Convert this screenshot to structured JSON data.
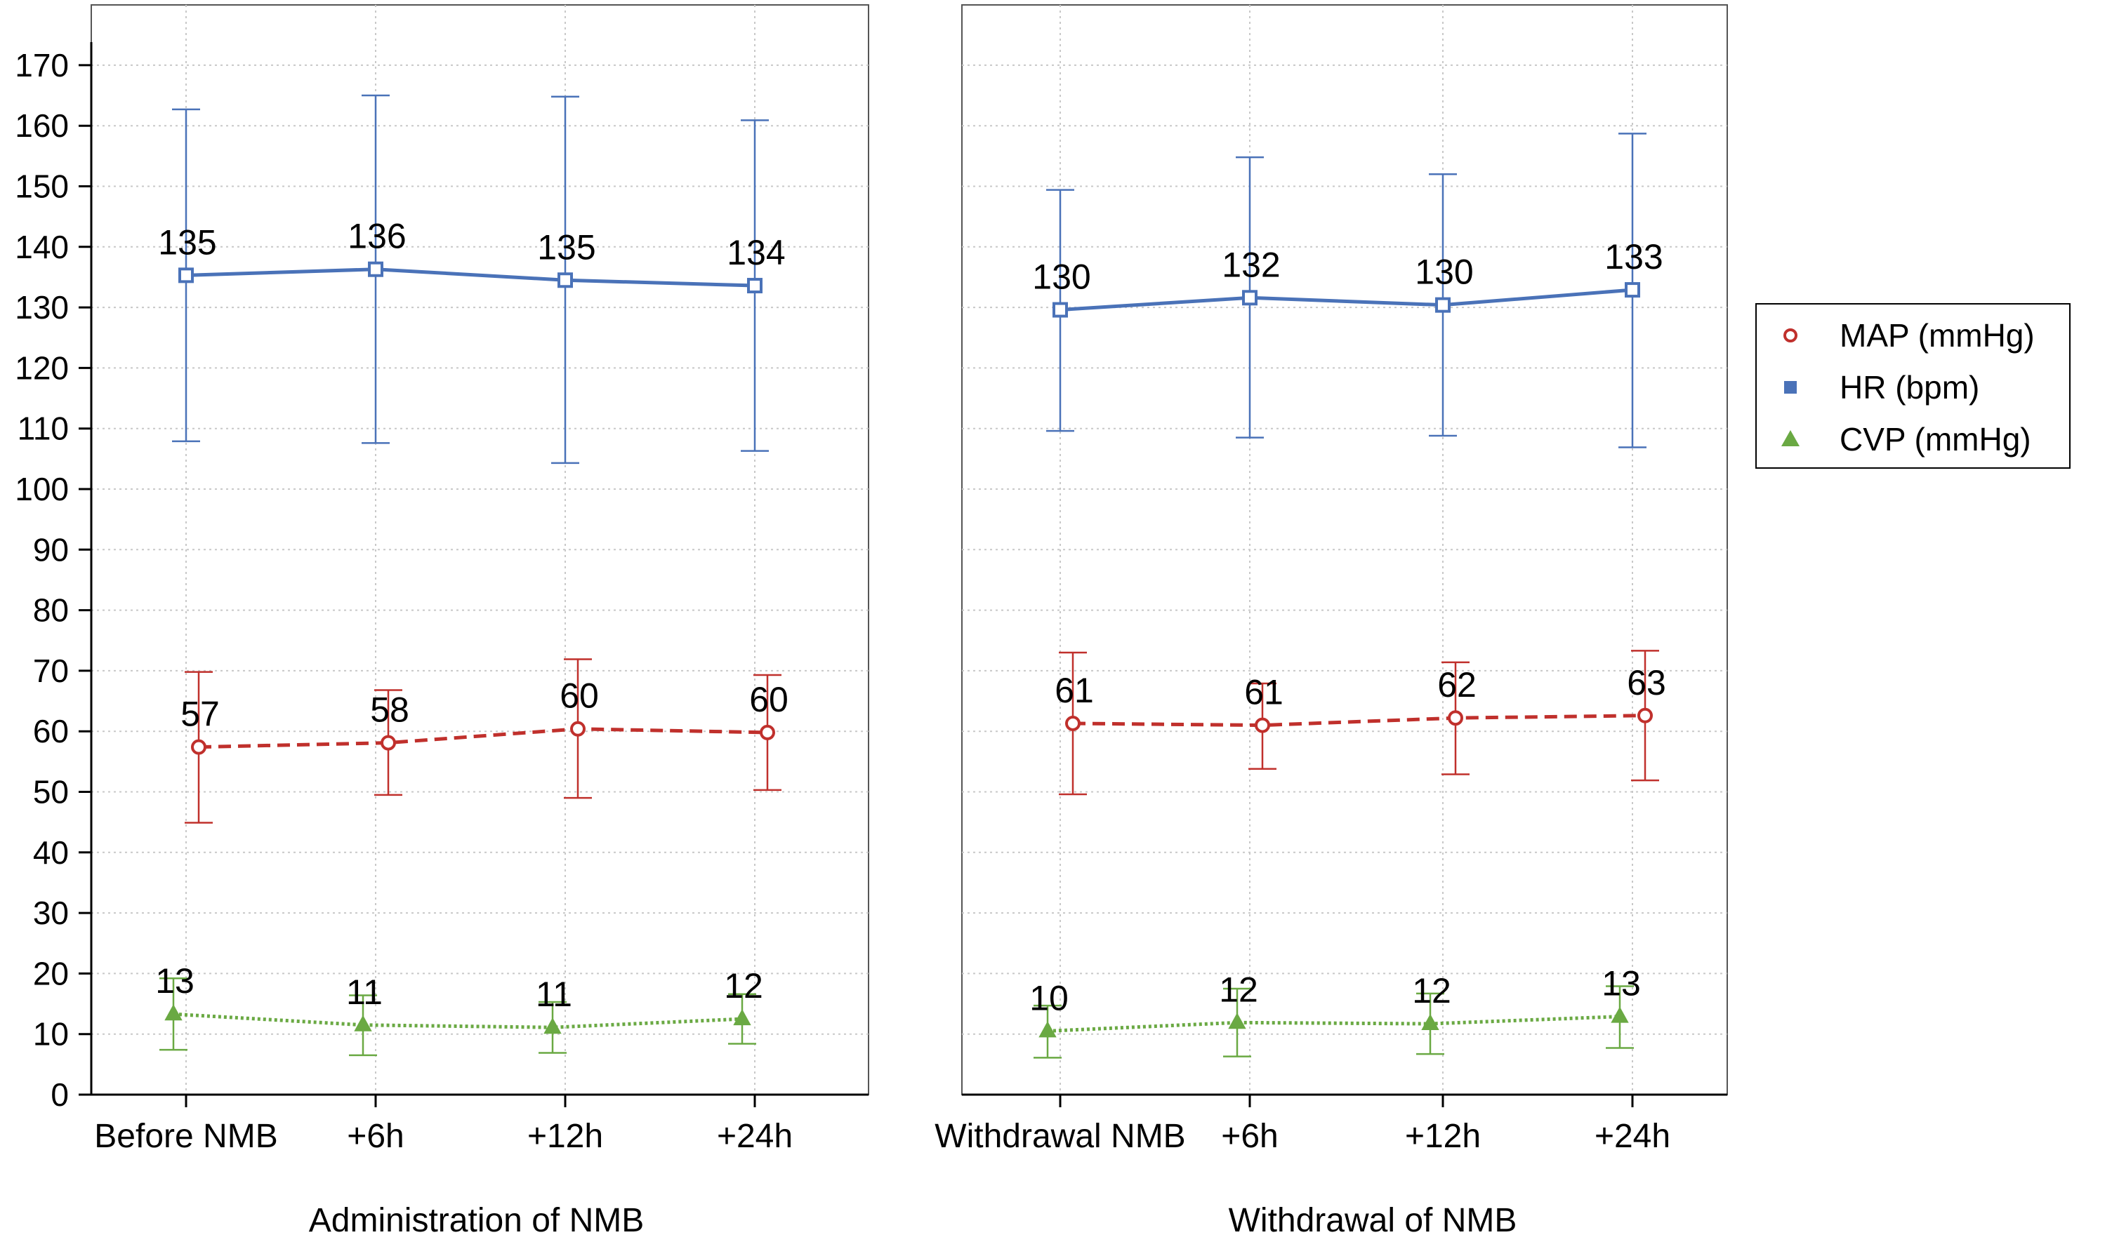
{
  "chart_data": {
    "type": "line",
    "y_ticks": [
      0,
      10,
      20,
      30,
      40,
      50,
      60,
      70,
      80,
      90,
      100,
      110,
      120,
      130,
      140,
      150,
      160,
      170
    ],
    "ylim": [
      0,
      178
    ],
    "grid": true,
    "legend_placement": "right",
    "panels": [
      {
        "xlabel": "Administration of NMB",
        "categories": [
          "Before NMB",
          "+6h",
          "+12h",
          "+24h"
        ]
      },
      {
        "xlabel": "Withdrawal of NMB",
        "categories": [
          "Withdrawal NMB",
          "+6h",
          "+12h",
          "+24h"
        ]
      }
    ],
    "series": [
      {
        "name": "MAP (mmHg)",
        "color": "#c0302c",
        "marker": "circle",
        "line_style": "dashed",
        "panels": [
          {
            "values": [
              57.4,
              58.1,
              60.4,
              59.8
            ],
            "labels": [
              "57",
              "58",
              "60",
              "60"
            ],
            "err_low": [
              44.9,
              49.5,
              49.0,
              50.3
            ],
            "err_high": [
              69.8,
              66.8,
              71.9,
              69.3
            ]
          },
          {
            "values": [
              61.3,
              61.0,
              62.2,
              62.6
            ],
            "labels": [
              "61",
              "61",
              "62",
              "63"
            ],
            "err_low": [
              49.6,
              53.8,
              52.9,
              51.9
            ],
            "err_high": [
              73.0,
              67.9,
              71.4,
              73.3
            ]
          }
        ]
      },
      {
        "name": "HR (bpm)",
        "color": "#4a72b8",
        "marker": "square",
        "line_style": "solid",
        "panels": [
          {
            "values": [
              135.3,
              136.3,
              134.5,
              133.6
            ],
            "labels": [
              "135",
              "136",
              "135",
              "134"
            ],
            "err_low": [
              107.9,
              107.6,
              104.3,
              106.3
            ],
            "err_high": [
              162.7,
              165.0,
              164.8,
              160.9
            ]
          },
          {
            "values": [
              129.6,
              131.6,
              130.4,
              132.9
            ],
            "labels": [
              "130",
              "132",
              "130",
              "133"
            ],
            "err_low": [
              109.6,
              108.5,
              108.8,
              106.9
            ],
            "err_high": [
              149.4,
              154.8,
              152.0,
              158.7
            ]
          }
        ]
      },
      {
        "name": "CVP (mmHg)",
        "color": "#6aa943",
        "marker": "triangle",
        "line_style": "dotted",
        "panels": [
          {
            "values": [
              13.3,
              11.5,
              11.1,
              12.5
            ],
            "labels": [
              "13",
              "11",
              "11",
              "12"
            ],
            "err_low": [
              7.4,
              6.5,
              6.9,
              8.4
            ],
            "err_high": [
              19.2,
              16.4,
              15.3,
              16.6
            ]
          },
          {
            "values": [
              10.5,
              11.9,
              11.7,
              12.9
            ],
            "labels": [
              "10",
              "12",
              "12",
              "13"
            ],
            "err_low": [
              6.1,
              6.3,
              6.7,
              7.7
            ],
            "err_high": [
              14.7,
              17.5,
              16.7,
              17.9
            ]
          }
        ]
      }
    ]
  }
}
